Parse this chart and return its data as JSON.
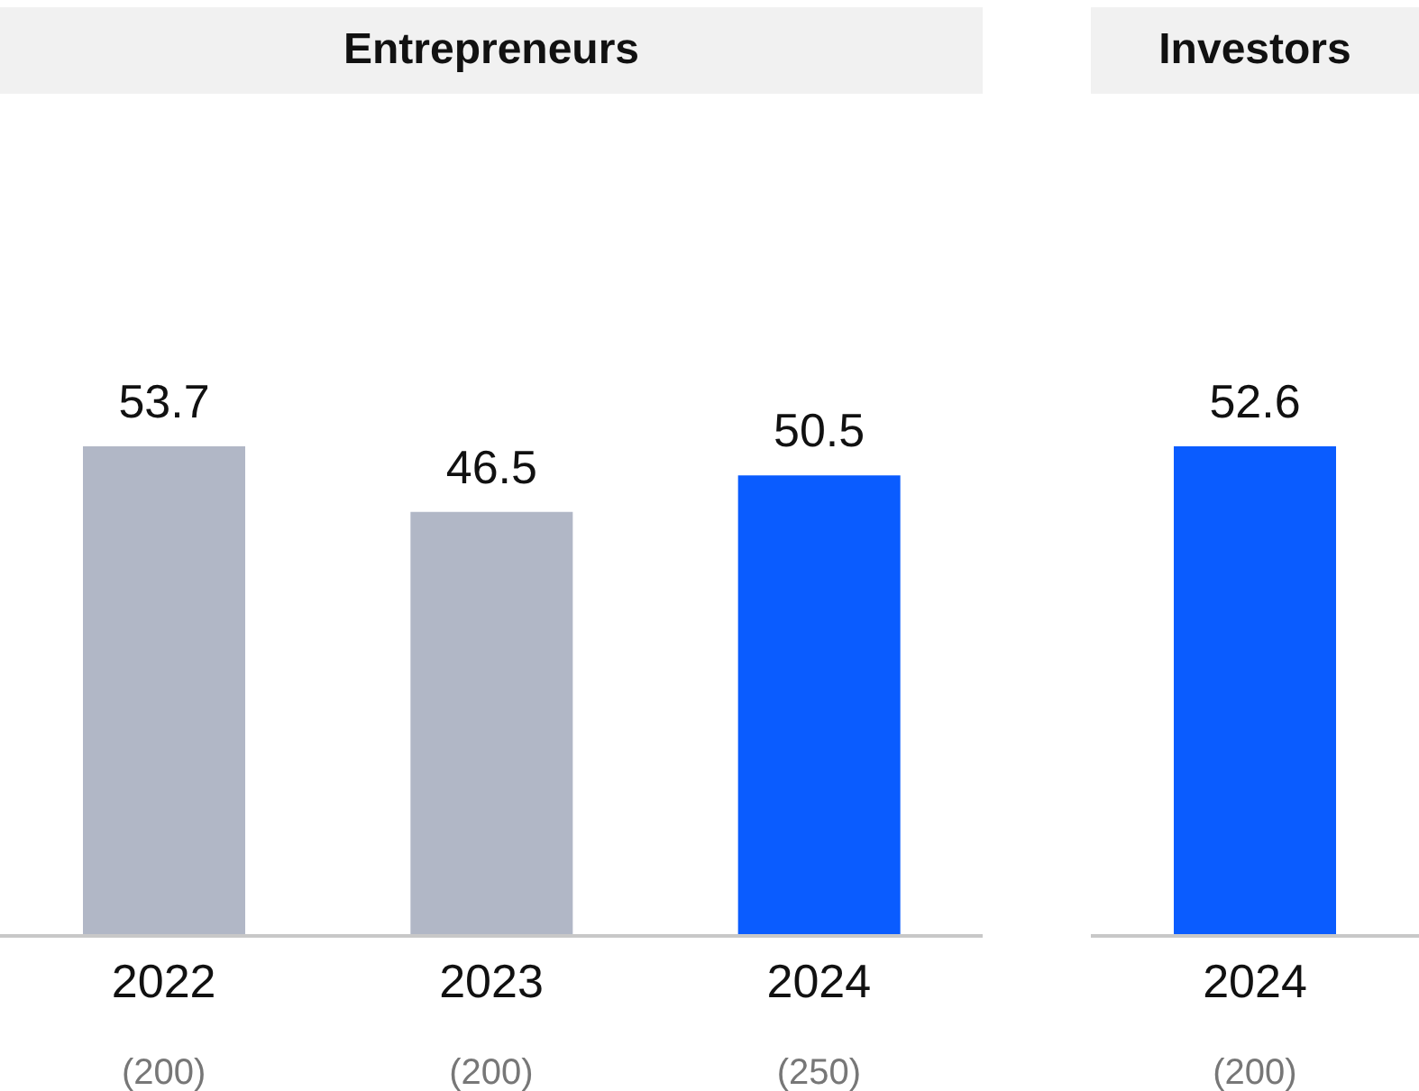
{
  "chart_data": [
    {
      "type": "bar",
      "title": "Entrepreneurs",
      "categories": [
        "2022",
        "2023",
        "2024"
      ],
      "values": [
        53.7,
        46.5,
        50.5
      ],
      "colors": [
        "#b1b7c6",
        "#b1b7c6",
        "#0a5cff"
      ],
      "data_labels": true,
      "annotations": [
        "(200)",
        "(200)",
        "(250)"
      ]
    },
    {
      "type": "bar",
      "title": "Investors",
      "categories": [
        "2024"
      ],
      "values": [
        52.6
      ],
      "colors": [
        "#0a5cff"
      ],
      "data_labels": true,
      "annotations": [
        "(200)"
      ]
    }
  ]
}
